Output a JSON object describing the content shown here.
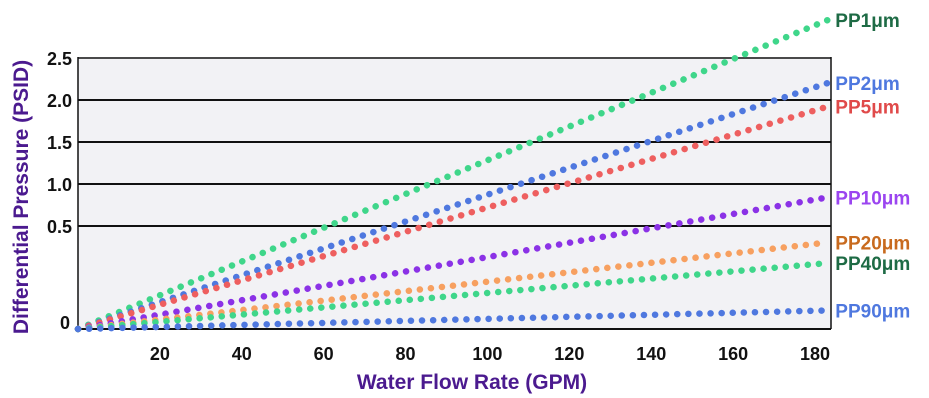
{
  "chart_data": {
    "type": "scatter",
    "title": "",
    "xlabel": "Water Flow Rate (GPM)",
    "ylabel": "Differential Pressure (PSID)",
    "xlim": [
      0,
      180
    ],
    "ylim": [
      0,
      2.5
    ],
    "x_ticks": [
      "20",
      "40",
      "60",
      "80",
      "100",
      "120",
      "140",
      "160",
      "180"
    ],
    "y_ticks": [
      "0.5",
      "1.0",
      "1.5",
      "2.0",
      "2.5"
    ],
    "y_zero_label": "0",
    "y_scale_note": "nonlinear: 0 to 0.5 spans more height than each 0.5 step above",
    "grid": "horizontal lines at y ticks",
    "plot_background": "#f2f2f5",
    "series": [
      {
        "name": "PP1μm",
        "color": "#3fd68a",
        "label_color": "#1e6b45",
        "x_end": 183,
        "y_end": 2.95
      },
      {
        "name": "PP2μm",
        "color": "#4f78df",
        "label_color": "#4f78df",
        "x_end": 183,
        "y_end": 2.2
      },
      {
        "name": "PP5μm",
        "color": "#ee5f5f",
        "label_color": "#e04a4a",
        "x_end": 183,
        "y_end": 1.92
      },
      {
        "name": "PP10μm",
        "color": "#8b32e6",
        "label_color": "#9b45f0",
        "x_end": 183,
        "y_end": 0.84
      },
      {
        "name": "PP20μm",
        "color": "#f7a060",
        "label_color": "#c86a1e",
        "x_end": 183,
        "y_end": 0.42
      },
      {
        "name": "PP40μm",
        "color": "#3fd68a",
        "label_color": "#1e6b45",
        "x_end": 183,
        "y_end": 0.32
      },
      {
        "name": "PP90μm",
        "color": "#4f78df",
        "label_color": "#4f78df",
        "x_end": 183,
        "y_end": 0.09
      }
    ]
  }
}
